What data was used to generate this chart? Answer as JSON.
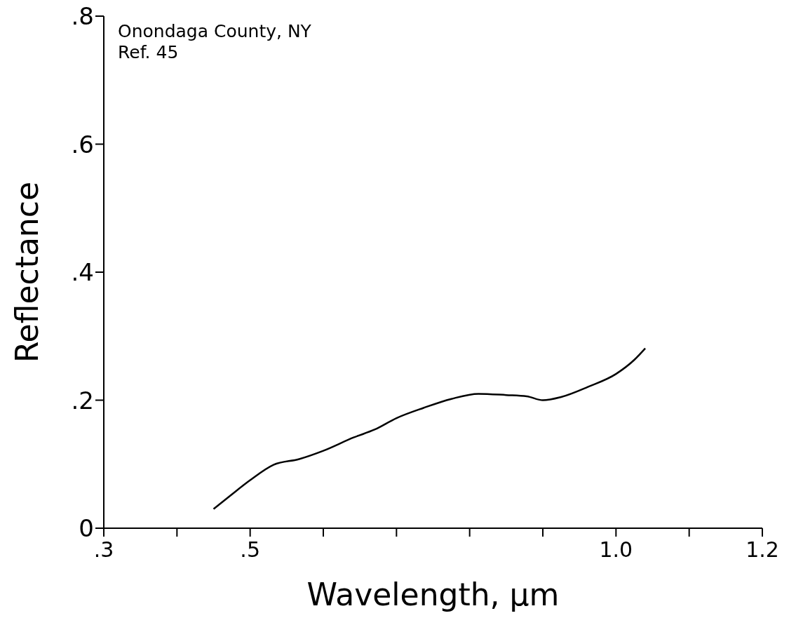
{
  "chart_data": {
    "type": "line",
    "xlabel": "Wavelength, μm",
    "ylabel": "Reflectance",
    "annotations": [
      "Onondaga County, NY",
      "Ref. 45"
    ],
    "x": [
      0.45,
      0.473,
      0.5,
      0.532,
      0.567,
      0.6,
      0.642,
      0.67,
      0.7,
      0.737,
      0.775,
      0.812,
      0.85,
      0.878,
      0.9,
      0.925,
      0.962,
      1.0,
      1.025,
      1.04
    ],
    "series": [
      {
        "color": "#000000",
        "values": [
          0.03,
          0.051,
          0.075,
          0.099,
          0.108,
          0.121,
          0.142,
          0.154,
          0.172,
          0.188,
          0.202,
          0.21,
          0.208,
          0.206,
          0.2,
          0.205,
          0.221,
          0.241,
          0.263,
          0.281
        ]
      }
    ],
    "xlim": [
      0.3,
      1.2
    ],
    "xticks": [
      {
        "value": 0.3,
        "label": ".3"
      },
      {
        "value": 0.4,
        "label": null
      },
      {
        "value": 0.5,
        "label": ".5"
      },
      {
        "value": 0.6,
        "label": null
      },
      {
        "value": 0.7,
        "label": null
      },
      {
        "value": 0.8,
        "label": null
      },
      {
        "value": 0.9,
        "label": null
      },
      {
        "value": 1.0,
        "label": "1.0"
      },
      {
        "value": 1.1,
        "label": null
      },
      {
        "value": 1.2,
        "label": "1.2"
      }
    ],
    "ylim": [
      0,
      0.8
    ],
    "yticks": [
      0,
      {
        "value": 0.2,
        "label": ".2"
      },
      {
        "value": 0.4,
        "label": ".4"
      },
      {
        "value": 0.6,
        "label": ".6"
      },
      {
        "value": 0.8,
        "label": ".8"
      }
    ],
    "grid": false,
    "legend": false,
    "marker": "none",
    "line_style": "solid"
  }
}
